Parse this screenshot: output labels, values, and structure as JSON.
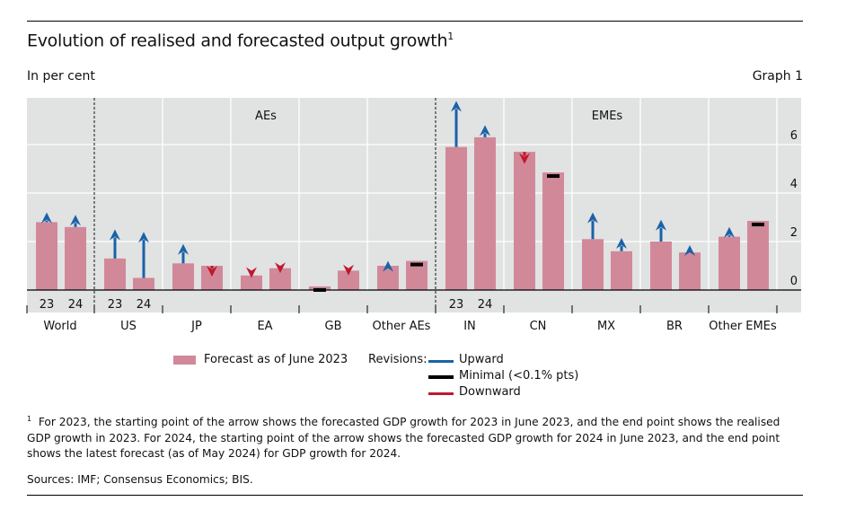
{
  "header": {
    "title": "Evolution of realised and forecasted output growth",
    "title_footnote_mark": "1",
    "unit": "In per cent",
    "graph_number": "Graph 1"
  },
  "legend": {
    "bar_label": "Forecast as of June 2023",
    "revisions_label": "Revisions:",
    "upward": "Upward",
    "minimal": "Minimal (<0.1% pts)",
    "downward": "Downward"
  },
  "footnote": {
    "mark": "1",
    "text": "For 2023, the starting point of the arrow shows the forecasted GDP growth for 2023 in June 2023, and the end point shows the realised GDP growth in 2023. For 2024, the starting point of the arrow shows the forecasted GDP growth for 2024 in June 2023, and the end point shows the latest forecast (as of May 2024) for GDP growth for 2024."
  },
  "sources": "Sources: IMF; Consensus Economics; BIS.",
  "colors": {
    "bar": "#d1899a",
    "upward": "#1a62a8",
    "minimal": "#000000",
    "downward": "#c0182d",
    "panel": "#e1e2e2"
  },
  "chart_data": {
    "type": "bar",
    "title": "Evolution of realised and forecasted output growth",
    "ylabel": "In per cent",
    "ylim": [
      0,
      8
    ],
    "yticks": [
      0,
      2,
      4,
      6
    ],
    "y_axis_side": "right",
    "grid": true,
    "group_labels": [
      {
        "label": "AEs",
        "over": [
          "US",
          "JP",
          "EA",
          "GB",
          "Other AEs"
        ]
      },
      {
        "label": "EMEs",
        "over": [
          "IN",
          "CN",
          "MX",
          "BR",
          "Other EMEs"
        ]
      }
    ],
    "dashed_separators_after": [
      "World",
      "Other AEs"
    ],
    "year_labels": [
      "23",
      "24"
    ],
    "year_labels_shown_for": [
      "World",
      "US",
      "IN"
    ],
    "categories": [
      "World",
      "US",
      "JP",
      "EA",
      "GB",
      "Other AEs",
      "IN",
      "CN",
      "MX",
      "BR",
      "Other EMEs"
    ],
    "series": [
      {
        "name": "Forecast as of June 2023 (2023)",
        "year": "23",
        "forecast_june2023": [
          2.8,
          1.3,
          1.1,
          0.6,
          0.15,
          1.0,
          5.9,
          5.7,
          2.1,
          2.0,
          2.2
        ],
        "revised": [
          3.2,
          2.5,
          1.9,
          0.5,
          0.15,
          1.2,
          7.8,
          5.2,
          3.2,
          2.9,
          2.6
        ],
        "revision": [
          "up",
          "up",
          "up",
          "down",
          "minimal",
          "up",
          "up",
          "down",
          "up",
          "up",
          "up"
        ]
      },
      {
        "name": "Forecast as of June 2023 (2024)",
        "year": "24",
        "forecast_june2023": [
          2.6,
          0.5,
          1.0,
          0.9,
          0.8,
          1.2,
          6.3,
          4.85,
          1.6,
          1.55,
          2.85
        ],
        "revised": [
          3.1,
          2.4,
          0.55,
          0.7,
          0.6,
          1.2,
          6.8,
          4.85,
          2.15,
          1.85,
          2.85
        ],
        "revision": [
          "up",
          "up",
          "down",
          "down",
          "down",
          "minimal",
          "up",
          "minimal",
          "up",
          "up",
          "minimal"
        ]
      }
    ],
    "legend": [
      "Forecast as of June 2023",
      "Upward",
      "Minimal (<0.1% pts)",
      "Downward"
    ],
    "legend_position": "bottom-center"
  }
}
